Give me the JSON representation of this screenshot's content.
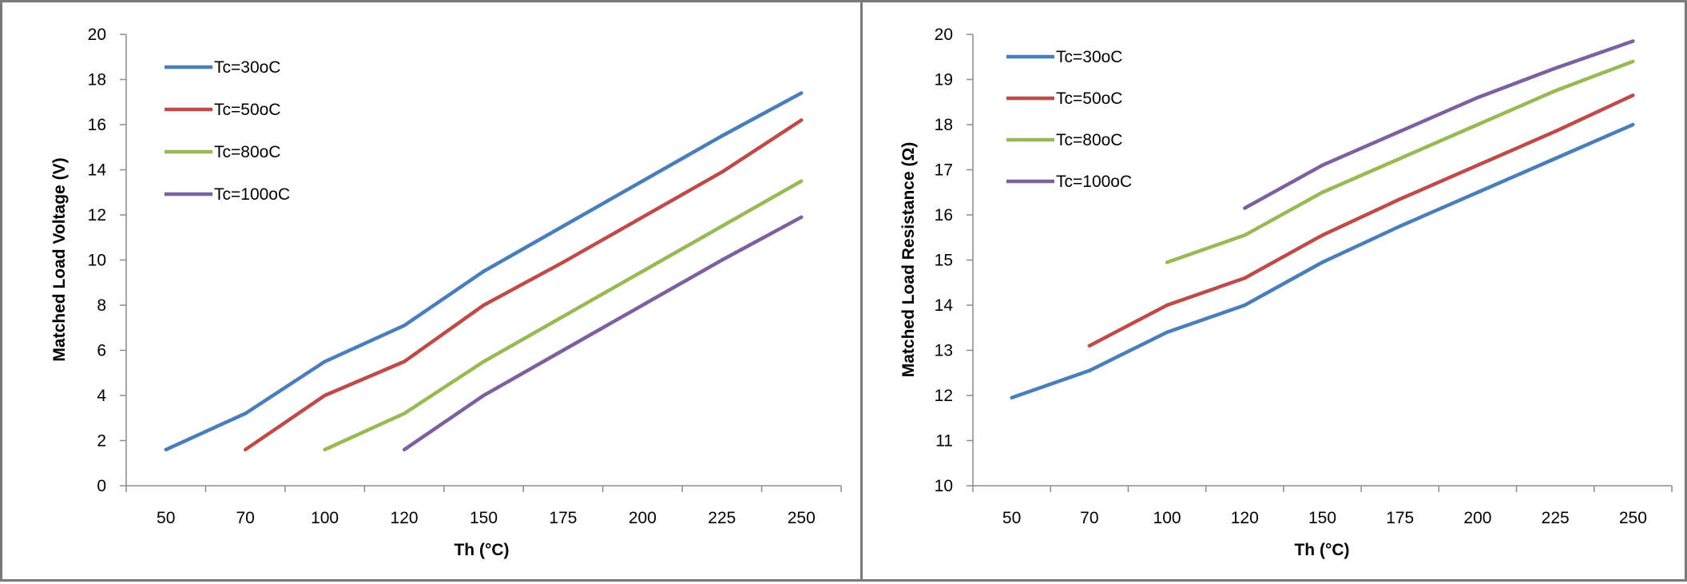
{
  "colors": {
    "series": [
      "#4a7ebb",
      "#be4b48",
      "#98b954",
      "#7d60a0"
    ],
    "axis": "#8c8c8c",
    "frame": "#7a7a7a"
  },
  "chart_data": [
    {
      "type": "line",
      "title": "",
      "xlabel": "Th (°C)",
      "ylabel": "Matched Load Voltage (V)",
      "categories": [
        "50",
        "70",
        "100",
        "120",
        "150",
        "175",
        "200",
        "225",
        "250"
      ],
      "ylim": [
        0,
        20
      ],
      "yticks": [
        0,
        2,
        4,
        6,
        8,
        10,
        12,
        14,
        16,
        18,
        20
      ],
      "grid": false,
      "legend": "top-left",
      "series": [
        {
          "name": "Tc=30oC",
          "values": [
            1.6,
            3.2,
            5.5,
            7.1,
            9.5,
            11.5,
            13.5,
            15.5,
            17.4
          ]
        },
        {
          "name": "Tc=50oC",
          "values": [
            null,
            1.6,
            4.0,
            5.5,
            8.0,
            9.9,
            11.9,
            13.9,
            16.2
          ]
        },
        {
          "name": "Tc=80oC",
          "values": [
            null,
            null,
            1.6,
            3.2,
            5.5,
            7.5,
            9.5,
            11.5,
            13.5
          ]
        },
        {
          "name": "Tc=100oC",
          "values": [
            null,
            null,
            null,
            1.6,
            4.0,
            6.0,
            8.0,
            10.0,
            11.9
          ]
        }
      ]
    },
    {
      "type": "line",
      "title": "",
      "xlabel": "Th (°C)",
      "ylabel": "Matched Load Resistance (Ω)",
      "categories": [
        "50",
        "70",
        "100",
        "120",
        "150",
        "175",
        "200",
        "225",
        "250"
      ],
      "ylim": [
        10,
        20
      ],
      "yticks": [
        10,
        11,
        12,
        13,
        14,
        15,
        16,
        17,
        18,
        19,
        20
      ],
      "grid": false,
      "legend": "top-left",
      "series": [
        {
          "name": "Tc=30oC",
          "values": [
            11.95,
            12.55,
            13.4,
            14.0,
            14.95,
            15.75,
            16.5,
            17.25,
            18.0
          ]
        },
        {
          "name": "Tc=50oC",
          "values": [
            null,
            13.1,
            14.0,
            14.6,
            15.55,
            16.35,
            17.1,
            17.85,
            18.65
          ]
        },
        {
          "name": "Tc=80oC",
          "values": [
            null,
            null,
            14.95,
            15.55,
            16.5,
            17.25,
            18.0,
            18.75,
            19.4
          ]
        },
        {
          "name": "Tc=100oC",
          "values": [
            null,
            null,
            null,
            16.15,
            17.1,
            17.85,
            18.6,
            19.25,
            19.85
          ]
        }
      ]
    }
  ]
}
